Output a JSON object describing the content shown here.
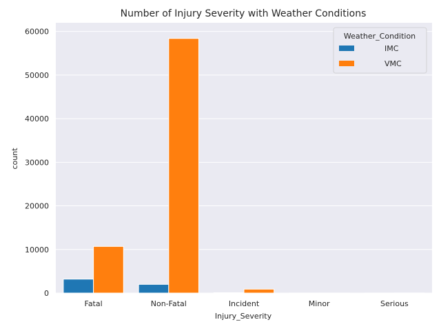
{
  "chart_data": {
    "type": "bar",
    "title": "Number of Injury Severity with Weather Conditions",
    "xlabel": "Injury_Severity",
    "ylabel": "count",
    "categories": [
      "Fatal",
      "Non-Fatal",
      "Incident",
      "Minor",
      "Serious"
    ],
    "series": [
      {
        "name": "IMC",
        "color": "#1f77b4",
        "values": [
          3200,
          2000,
          80,
          10,
          10
        ]
      },
      {
        "name": "VMC",
        "color": "#ff7f0e",
        "values": [
          10700,
          58400,
          900,
          20,
          30
        ]
      }
    ],
    "ylim": [
      0,
      62000
    ],
    "yticks": [
      0,
      10000,
      20000,
      30000,
      40000,
      50000,
      60000
    ],
    "legend": {
      "title": "Weather_Condition",
      "position": "top-right"
    },
    "grid": true,
    "plot_background": "#eaeaf2"
  }
}
